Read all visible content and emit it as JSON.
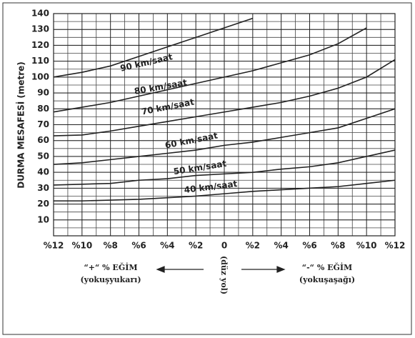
{
  "chart_data": {
    "type": "line",
    "ylabel": "DURMA MESAFESİ (metre)",
    "x": [
      12,
      10,
      8,
      6,
      4,
      2,
      0,
      -2,
      -4,
      -6,
      -8,
      -10,
      -12
    ],
    "xlim": [
      12,
      -12
    ],
    "xticks": [
      {
        "value": 12,
        "label": "%12"
      },
      {
        "value": 10,
        "label": "%10"
      },
      {
        "value": 8,
        "label": "%8"
      },
      {
        "value": 6,
        "label": "%6"
      },
      {
        "value": 4,
        "label": "%4"
      },
      {
        "value": 2,
        "label": "%2"
      },
      0,
      {
        "value": -2,
        "label": "%2"
      },
      {
        "value": -4,
        "label": "%4"
      },
      {
        "value": -6,
        "label": "%6"
      },
      {
        "value": -8,
        "label": "%8"
      },
      {
        "value": -10,
        "label": "%10"
      },
      {
        "value": -12,
        "label": "%12"
      }
    ],
    "ylim": [
      0,
      140
    ],
    "yticks": [
      10,
      20,
      30,
      40,
      50,
      60,
      70,
      80,
      90,
      100,
      110,
      120,
      130,
      140
    ],
    "grid": true,
    "series": [
      {
        "name": "90 km/saat",
        "color": "#222222",
        "values": [
          100,
          103,
          107,
          113,
          119,
          125,
          131,
          137,
          null,
          null,
          null,
          null,
          null
        ]
      },
      {
        "name": "80 km/saat",
        "color": "#222222",
        "values": [
          78,
          81,
          84,
          88,
          92,
          96,
          100,
          104,
          109,
          114,
          121,
          131,
          null
        ]
      },
      {
        "name": "70 km/saat",
        "color": "#222222",
        "values": [
          63,
          63.5,
          66,
          69,
          72,
          75,
          78,
          81,
          84,
          88,
          93,
          100,
          111
        ]
      },
      {
        "name": "60 km/saat",
        "color": "#222222",
        "values": [
          45,
          46,
          48,
          50,
          52,
          54,
          57,
          59,
          62,
          65,
          68,
          74,
          80
        ]
      },
      {
        "name": "50 km/saat",
        "color": "#222222",
        "values": [
          32,
          32.5,
          33,
          35,
          36,
          38,
          39,
          40,
          42,
          43.5,
          46,
          50,
          54
        ]
      },
      {
        "name": "40 km/saat",
        "color": "#222222",
        "values": [
          22,
          22,
          22.5,
          23,
          24,
          25,
          26.5,
          28,
          29,
          30,
          31,
          33,
          35
        ]
      }
    ],
    "annotations": {
      "uphill": "“+“ % EĞİM",
      "uphill_note": "(yokuşyukarı)",
      "flat": "(düz yol)",
      "downhill": "“-“ % EĞİM",
      "downhill_note": "(yokuşaşağı)"
    }
  }
}
